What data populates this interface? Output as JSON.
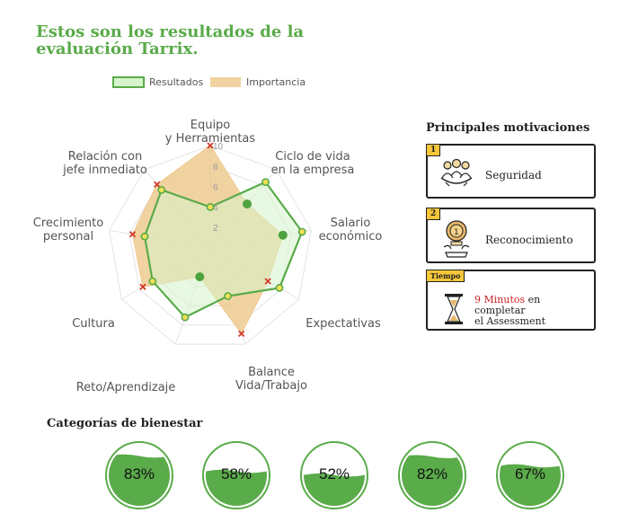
{
  "page": {
    "title": "Estos son los resultados de la evaluación Tarrix."
  },
  "chart_data": {
    "type": "radar",
    "axes": [
      [
        "Equipo",
        "y Herramientas"
      ],
      [
        "Ciclo de vida",
        "en la empresa"
      ],
      [
        "Salario",
        "económico"
      ],
      [
        "Expectativas"
      ],
      [
        "Balance",
        "Vida/Trabajo"
      ],
      [
        "Reto/Aprendizaje"
      ],
      [
        "Cultura"
      ],
      [
        "Crecimiento",
        "personal"
      ],
      [
        "Relación con",
        "jefe inmediato"
      ]
    ],
    "ticks": [
      2,
      4,
      6,
      8,
      10
    ],
    "range": [
      0,
      10
    ],
    "legend": {
      "position": "top",
      "entries": [
        "Resultados",
        "Importancia"
      ]
    },
    "series": [
      {
        "name": "Resultados",
        "values": [
          4,
          8.4,
          9.1,
          7.8,
          5.0,
          7.2,
          6.5,
          6.5,
          7.4
        ],
        "color": "#5aab4a"
      },
      {
        "name": "Importancia",
        "values": [
          10,
          5.6,
          7.2,
          6.5,
          8.9,
          3.0,
          7.6,
          7.7,
          8.1
        ],
        "color": "#eec88a"
      }
    ],
    "highlight_points": [
      {
        "axis": 1,
        "value": 5.6
      },
      {
        "axis": 2,
        "value": 7.2
      },
      {
        "axis": 5,
        "value": 3.0
      }
    ]
  },
  "motivations": {
    "title": "Principales motivaciones",
    "items": [
      {
        "rank": "1",
        "label": "Seguridad",
        "icon": "people-icon"
      },
      {
        "rank": "2",
        "label": "Reconocimiento",
        "icon": "trophy-icon"
      }
    ],
    "time": {
      "badge": "Tiempo",
      "highlight": "9 Minutos",
      "text1": " en completar",
      "text2": "el Assessment",
      "icon": "hourglass-icon"
    }
  },
  "wellbeing": {
    "title": "Categorías de bienestar",
    "values": [
      83,
      58,
      52,
      82,
      67
    ],
    "labels": [
      "83%",
      "58%",
      "52%",
      "82%",
      "67%"
    ],
    "color": "#5aab4a"
  }
}
